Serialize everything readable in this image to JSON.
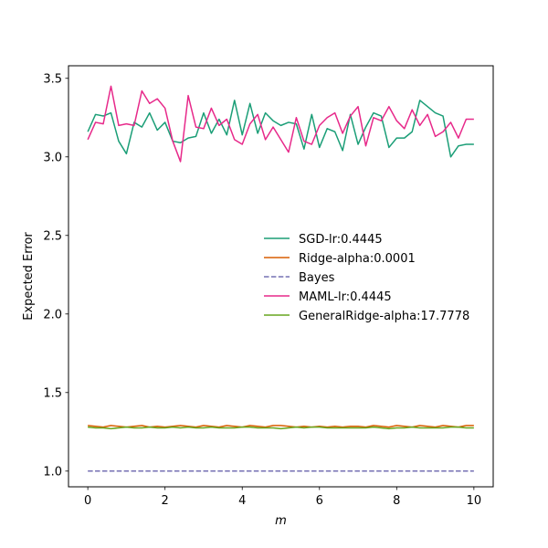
{
  "chart_data": {
    "type": "line",
    "title": "",
    "xlabel": "m",
    "ylabel": "Expected Error",
    "xlim": [
      -0.5,
      10.5
    ],
    "ylim": [
      0.9,
      3.58
    ],
    "xticks": [
      0,
      2,
      4,
      6,
      8,
      10
    ],
    "xtick_labels": [
      "0",
      "2",
      "4",
      "6",
      "8",
      "10"
    ],
    "yticks": [
      1.0,
      1.5,
      2.0,
      2.5,
      3.0,
      3.5
    ],
    "ytick_labels": [
      "1.0",
      "1.5",
      "2.0",
      "2.5",
      "3.0",
      "3.5"
    ],
    "grid": false,
    "legend_position": "center-right",
    "x": [
      0,
      0.2,
      0.4,
      0.6,
      0.8,
      1.0,
      1.2,
      1.4,
      1.6,
      1.8,
      2.0,
      2.2,
      2.4,
      2.6,
      2.8,
      3.0,
      3.2,
      3.4,
      3.6,
      3.8,
      4.0,
      4.2,
      4.4,
      4.6,
      4.8,
      5.0,
      5.2,
      5.4,
      5.6,
      5.8,
      6.0,
      6.2,
      6.4,
      6.6,
      6.8,
      7.0,
      7.2,
      7.4,
      7.6,
      7.8,
      8.0,
      8.2,
      8.4,
      8.6,
      8.8,
      9.0,
      9.2,
      9.4,
      9.6,
      9.8,
      10.0
    ],
    "series": [
      {
        "name": "SGD-lr:0.4445",
        "color": "#1b9e77",
        "dash": "solid",
        "values": [
          3.16,
          3.27,
          3.26,
          3.28,
          3.1,
          3.02,
          3.22,
          3.19,
          3.28,
          3.17,
          3.22,
          3.1,
          3.09,
          3.12,
          3.13,
          3.28,
          3.15,
          3.24,
          3.14,
          3.36,
          3.14,
          3.34,
          3.15,
          3.28,
          3.23,
          3.2,
          3.22,
          3.21,
          3.05,
          3.27,
          3.06,
          3.18,
          3.16,
          3.04,
          3.27,
          3.08,
          3.19,
          3.28,
          3.26,
          3.06,
          3.12,
          3.12,
          3.16,
          3.36,
          3.32,
          3.28,
          3.26,
          3.0,
          3.07,
          3.08,
          3.08
        ]
      },
      {
        "name": "Ridge-alpha:0.0001",
        "color": "#d95f02",
        "dash": "solid",
        "values": [
          1.29,
          1.285,
          1.28,
          1.29,
          1.285,
          1.28,
          1.285,
          1.29,
          1.28,
          1.285,
          1.28,
          1.285,
          1.29,
          1.285,
          1.28,
          1.29,
          1.285,
          1.28,
          1.29,
          1.285,
          1.28,
          1.29,
          1.285,
          1.28,
          1.29,
          1.29,
          1.285,
          1.28,
          1.285,
          1.28,
          1.285,
          1.28,
          1.285,
          1.28,
          1.285,
          1.285,
          1.28,
          1.29,
          1.285,
          1.28,
          1.29,
          1.285,
          1.28,
          1.29,
          1.285,
          1.28,
          1.29,
          1.285,
          1.28,
          1.29,
          1.29
        ]
      },
      {
        "name": "Bayes",
        "color": "#7570b3",
        "dash": "dashed",
        "values": [
          1.0,
          1.0,
          1.0,
          1.0,
          1.0,
          1.0,
          1.0,
          1.0,
          1.0,
          1.0,
          1.0,
          1.0,
          1.0,
          1.0,
          1.0,
          1.0,
          1.0,
          1.0,
          1.0,
          1.0,
          1.0,
          1.0,
          1.0,
          1.0,
          1.0,
          1.0,
          1.0,
          1.0,
          1.0,
          1.0,
          1.0,
          1.0,
          1.0,
          1.0,
          1.0,
          1.0,
          1.0,
          1.0,
          1.0,
          1.0,
          1.0,
          1.0,
          1.0,
          1.0,
          1.0,
          1.0,
          1.0,
          1.0,
          1.0,
          1.0,
          1.0
        ]
      },
      {
        "name": "MAML-lr:0.4445",
        "color": "#e7298a",
        "dash": "solid",
        "values": [
          3.11,
          3.22,
          3.21,
          3.45,
          3.2,
          3.21,
          3.2,
          3.42,
          3.34,
          3.37,
          3.31,
          3.1,
          2.97,
          3.39,
          3.19,
          3.18,
          3.31,
          3.2,
          3.24,
          3.11,
          3.08,
          3.21,
          3.27,
          3.11,
          3.19,
          3.11,
          3.03,
          3.25,
          3.1,
          3.08,
          3.2,
          3.25,
          3.28,
          3.15,
          3.26,
          3.32,
          3.07,
          3.25,
          3.23,
          3.32,
          3.23,
          3.18,
          3.3,
          3.2,
          3.27,
          3.13,
          3.16,
          3.22,
          3.12,
          3.24,
          3.24
        ]
      },
      {
        "name": "GeneralRidge-alpha:17.7778",
        "color": "#66a61e",
        "dash": "solid",
        "values": [
          1.28,
          1.275,
          1.275,
          1.27,
          1.275,
          1.28,
          1.275,
          1.275,
          1.28,
          1.275,
          1.275,
          1.28,
          1.275,
          1.28,
          1.275,
          1.275,
          1.28,
          1.275,
          1.275,
          1.275,
          1.28,
          1.28,
          1.275,
          1.275,
          1.275,
          1.27,
          1.275,
          1.28,
          1.275,
          1.28,
          1.28,
          1.275,
          1.275,
          1.275,
          1.275,
          1.275,
          1.275,
          1.28,
          1.275,
          1.27,
          1.275,
          1.275,
          1.28,
          1.275,
          1.275,
          1.275,
          1.275,
          1.28,
          1.28,
          1.275,
          1.275
        ]
      }
    ]
  }
}
